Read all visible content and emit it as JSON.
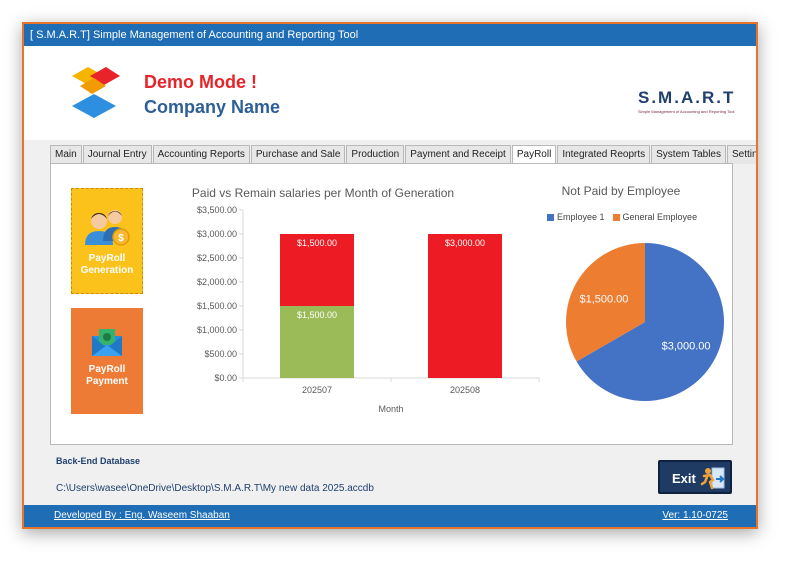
{
  "window": {
    "title": "[ S.M.A.R.T] Simple Management of Accounting and Reporting Tool"
  },
  "header": {
    "demo_mode": "Demo Mode !",
    "company_name": "Company Name",
    "brand": "S.M.A.R.T",
    "brand_subtitle": "Simple Management of Accounting and Reporting Tool"
  },
  "tabs": [
    {
      "label": "Main"
    },
    {
      "label": "Journal Entry"
    },
    {
      "label": "Accounting Reports"
    },
    {
      "label": "Purchase and Sale"
    },
    {
      "label": "Production"
    },
    {
      "label": "Payment and Receipt"
    },
    {
      "label": "PayRoll",
      "active": true
    },
    {
      "label": "Integrated Reoprts"
    },
    {
      "label": "System Tables"
    },
    {
      "label": "Settings"
    }
  ],
  "buttons": {
    "payroll_generation": "PayRoll Generation",
    "payroll_payment": "PayRoll Payment",
    "exit": "Exit"
  },
  "colors": {
    "paid": "#9bbb59",
    "remain": "#ed1c24",
    "employee_1": "#4472c4",
    "general_employee": "#ed7d31",
    "title_bar": "#1f6db5"
  },
  "chart_data": [
    {
      "type": "bar",
      "title": "Paid vs Remain salaries per Month of Generation",
      "xlabel": "Month",
      "ylabel": "",
      "categories": [
        "202507",
        "202508"
      ],
      "stacked": true,
      "series": [
        {
          "values": [
            1500,
            0
          ],
          "labels": [
            "$1,500.00",
            ""
          ],
          "color": "#9bbb59"
        },
        {
          "values": [
            1500,
            3000
          ],
          "labels": [
            "$1,500.00",
            "$3,000.00"
          ],
          "color": "#ed1c24"
        }
      ],
      "ylim": [
        0,
        3500
      ],
      "yticks": [
        0,
        500,
        1000,
        1500,
        2000,
        2500,
        3000,
        3500
      ],
      "ytick_labels": [
        "$0.00",
        "$500.00",
        "$1,000.00",
        "$1,500.00",
        "$2,000.00",
        "$2,500.00",
        "$3,000.00",
        "$3,500.00"
      ],
      "legend": "none",
      "grid": false
    },
    {
      "type": "pie",
      "title": "Not Paid by Employee",
      "slices": [
        {
          "name": "Employee 1",
          "value": 3000,
          "label": "$3,000.00",
          "color": "#4472c4"
        },
        {
          "name": "General Employee",
          "value": 1500,
          "label": "$1,500.00",
          "color": "#ed7d31"
        }
      ],
      "legend": "top"
    }
  ],
  "database": {
    "label": "Back-End Database",
    "path": "C:\\Users\\wasee\\OneDrive\\Desktop\\S.M.A.R.T\\My new data 2025.accdb"
  },
  "footer": {
    "developer": "Developed By : Eng. Waseem Shaaban",
    "version": "Ver: 1.10-0725"
  }
}
